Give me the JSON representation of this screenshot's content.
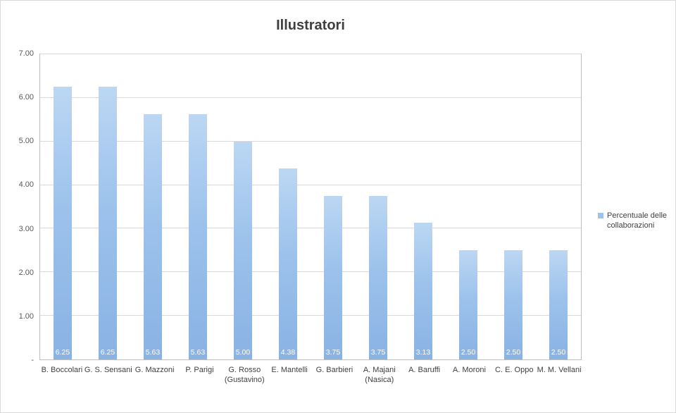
{
  "chart_data": {
    "type": "bar",
    "title": "Illustratori",
    "categories": [
      "B. Boccolari",
      "G. S. Sensani",
      "G. Mazzoni",
      "P. Parigi",
      "G. Rosso\n(Gustavino)",
      "E. Mantelli",
      "G. Barbieri",
      "A. Majani\n(Nasica)",
      "A. Baruffi",
      "A. Moroni",
      "C. E. Oppo",
      "M. M. Vellani"
    ],
    "series": [
      {
        "name": "Percentuale delle collaborazioni",
        "values": [
          6.25,
          6.25,
          5.63,
          5.63,
          5.0,
          4.38,
          3.75,
          3.75,
          3.13,
          2.5,
          2.5,
          2.5
        ]
      }
    ],
    "data_labels": [
      "6.25",
      "6.25",
      "5.63",
      "5.63",
      "5.00",
      "4.38",
      "3.75",
      "3.75",
      "3.13",
      "2.50",
      "2.50",
      "2.50"
    ],
    "xlabel": "",
    "ylabel": "",
    "ylim": [
      0,
      7
    ],
    "ytick_step": 1,
    "ytick_labels": [
      "-",
      "1.00",
      "2.00",
      "3.00",
      "4.00",
      "5.00",
      "6.00",
      "7.00"
    ],
    "grid": true,
    "legend_position": "right",
    "data_label_position": "inside-base",
    "colors": {
      "bar_top": "#bcd7f3",
      "bar_mid": "#9cc2ec",
      "bar_bottom": "#8ab2e3",
      "legend_swatch": "#9dc3ea",
      "gridline": "#d9d9d9",
      "plot_border": "#bfbfbf",
      "title_text": "#3f3f3f",
      "axis_text": "#595959",
      "data_label_text": "#ffffff"
    }
  }
}
